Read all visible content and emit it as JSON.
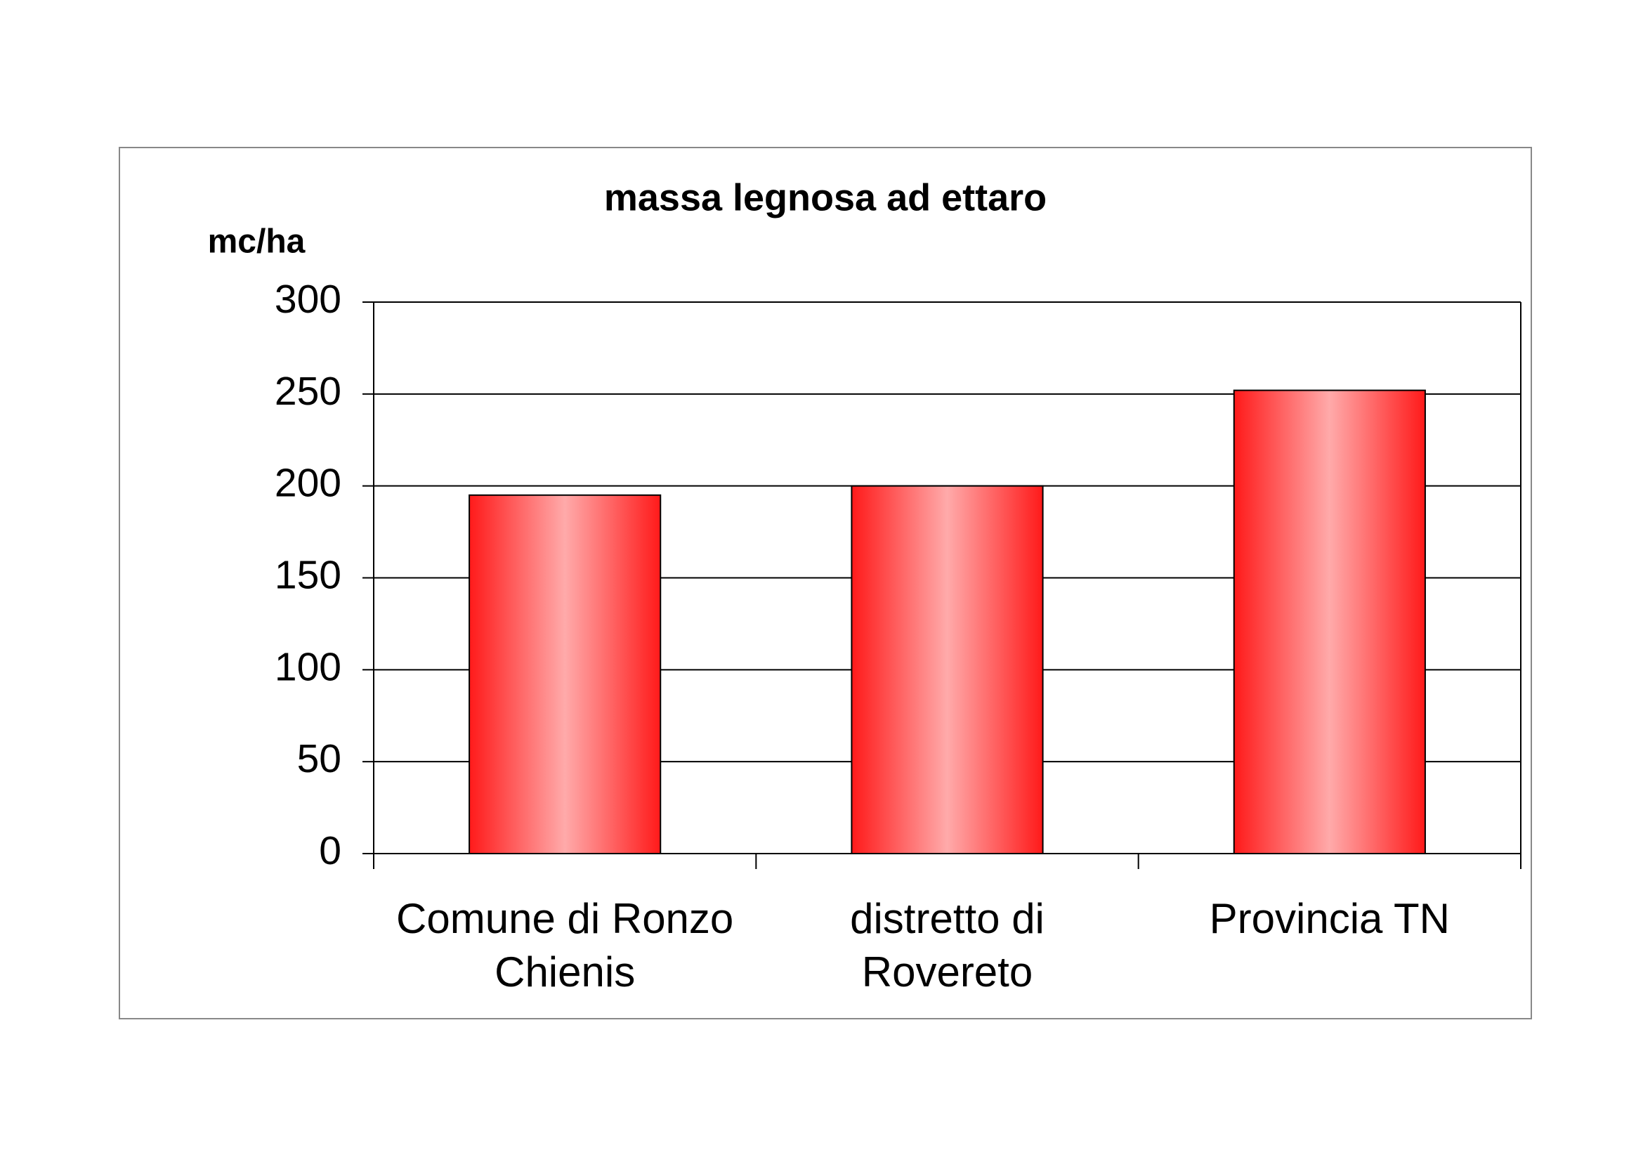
{
  "chart_data": {
    "type": "bar",
    "title": "massa legnosa ad ettaro",
    "y_label": "mc/ha",
    "categories": [
      "Comune di Ronzo\nChienis",
      "distretto di\nRovereto",
      "Provincia TN"
    ],
    "values": [
      195,
      200,
      252
    ],
    "color": "#ff1a1a",
    "ylim": [
      0,
      300
    ],
    "yticks": [
      0,
      50,
      100,
      150,
      200,
      250,
      300
    ],
    "grid": true
  }
}
